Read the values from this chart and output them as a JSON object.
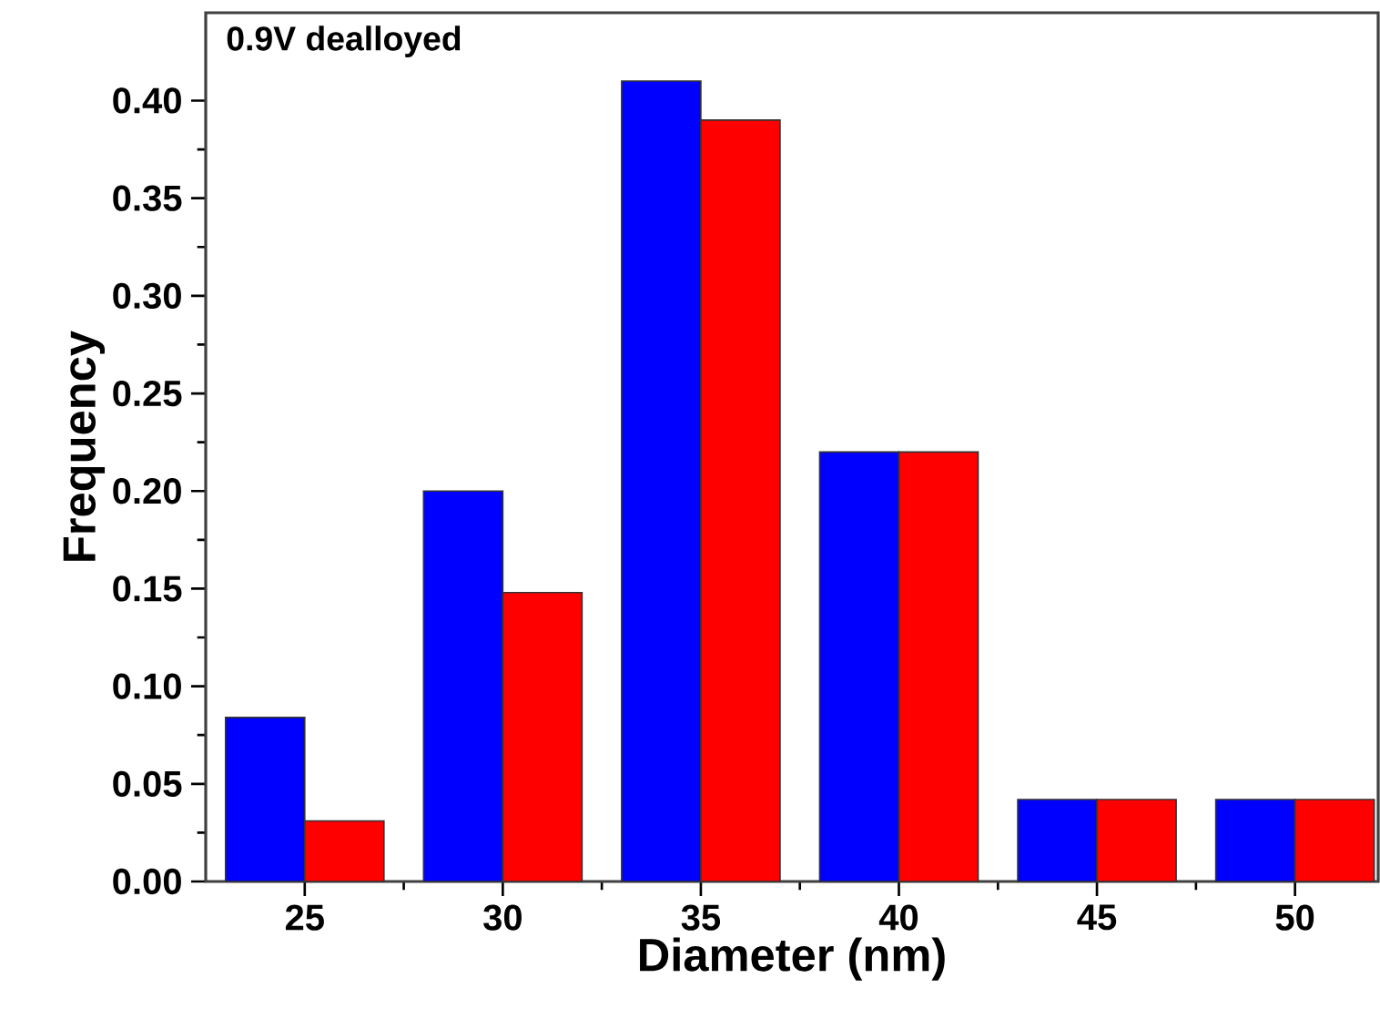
{
  "chart_data": {
    "type": "bar",
    "xlabel": "Diameter (nm)",
    "ylabel": "Frequency",
    "annotations": [
      "0.9V dealloyed"
    ],
    "x": [
      25,
      30,
      35,
      40,
      45,
      50
    ],
    "series": [
      {
        "color": "#0000ff",
        "values": [
          0.084,
          0.2,
          0.41,
          0.22,
          0.042,
          0.042
        ]
      },
      {
        "color": "#ff0000",
        "values": [
          0.031,
          0.148,
          0.39,
          0.22,
          0.042,
          0.042
        ]
      }
    ],
    "xlim": [
      22.5,
      52.1
    ],
    "ylim": [
      0,
      0.445
    ],
    "xticks": [
      25,
      30,
      35,
      40,
      45,
      50
    ],
    "yticks": [
      {
        "value": 0,
        "label": "0.00"
      },
      {
        "value": 0.05,
        "label": "0.05"
      },
      {
        "value": 0.1,
        "label": "0.10"
      },
      {
        "value": 0.15,
        "label": "0.15"
      },
      {
        "value": 0.2,
        "label": "0.20"
      },
      {
        "value": 0.25,
        "label": "0.25"
      },
      {
        "value": 0.3,
        "label": "0.30"
      },
      {
        "value": 0.35,
        "label": "0.35"
      },
      {
        "value": 0.4,
        "label": "0.40"
      }
    ],
    "grid": false
  }
}
